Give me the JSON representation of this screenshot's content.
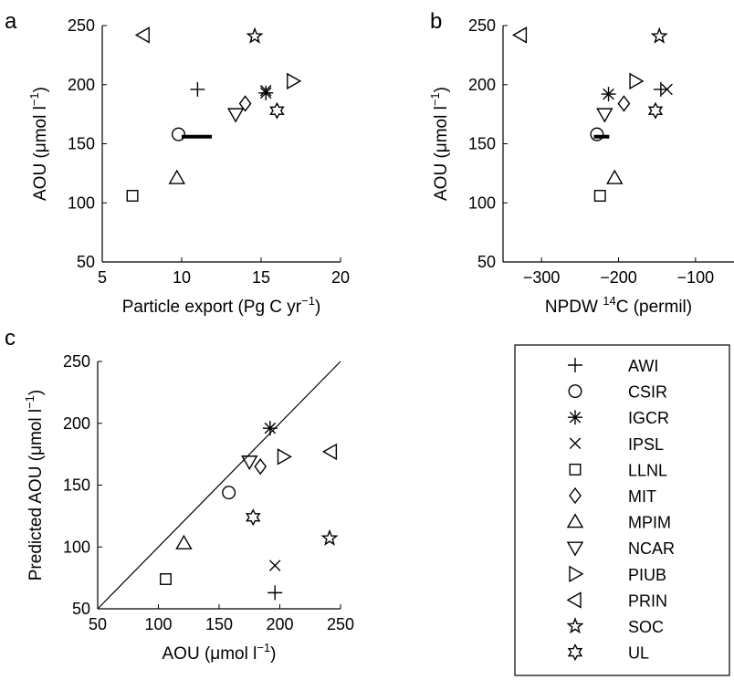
{
  "legend": {
    "entries": [
      {
        "label": "AWI",
        "marker": "plus"
      },
      {
        "label": "CSIR",
        "marker": "circle"
      },
      {
        "label": "IGCR",
        "marker": "asterisk"
      },
      {
        "label": "IPSL",
        "marker": "cross"
      },
      {
        "label": "LLNL",
        "marker": "square"
      },
      {
        "label": "MIT",
        "marker": "diamond"
      },
      {
        "label": "MPIM",
        "marker": "triangle-up"
      },
      {
        "label": "NCAR",
        "marker": "triangle-down"
      },
      {
        "label": "PIUB",
        "marker": "triangle-right"
      },
      {
        "label": "PRIN",
        "marker": "triangle-left"
      },
      {
        "label": "SOC",
        "marker": "star5"
      },
      {
        "label": "UL",
        "marker": "star6"
      }
    ]
  },
  "chart_data": [
    {
      "panel": "a",
      "type": "scatter",
      "xlabel": "Particle export (Pg C yr",
      "xlabel_sup": "−1",
      "xlabel_end": ")",
      "ylabel": "AOU (μmol l",
      "ylabel_sup": "−1",
      "ylabel_end": ")",
      "xlim": [
        5,
        20
      ],
      "ylim": [
        50,
        250
      ],
      "xticks": [
        5,
        10,
        15,
        20
      ],
      "yticks": [
        50,
        100,
        150,
        200,
        250
      ],
      "series": [
        {
          "marker": "plus",
          "x": 11.0,
          "y": 196
        },
        {
          "marker": "circle",
          "x": 9.8,
          "y": 158
        },
        {
          "marker": "asterisk",
          "x": 15.3,
          "y": 193
        },
        {
          "marker": "cross",
          "x": 15.3,
          "y": 195
        },
        {
          "marker": "square",
          "x": 6.9,
          "y": 106
        },
        {
          "marker": "diamond",
          "x": 14.0,
          "y": 184
        },
        {
          "marker": "triangle-up",
          "x": 9.7,
          "y": 121
        },
        {
          "marker": "triangle-down",
          "x": 13.4,
          "y": 175
        },
        {
          "marker": "triangle-right",
          "x": 17.0,
          "y": 203
        },
        {
          "marker": "triangle-left",
          "x": 7.6,
          "y": 242
        },
        {
          "marker": "star5",
          "x": 14.6,
          "y": 241
        },
        {
          "marker": "star6",
          "x": 16.0,
          "y": 178
        }
      ],
      "range_bar": {
        "x": [
          10.0,
          11.9
        ],
        "y": 156
      }
    },
    {
      "panel": "b",
      "type": "scatter",
      "xlabel": "NPDW ",
      "xlabel_sup": "14",
      "xlabel_end": "C (permil)",
      "ylabel": "AOU (μmol l",
      "ylabel_sup": "−1",
      "ylabel_end": ")",
      "xlim": [
        -350,
        -50
      ],
      "ylim": [
        50,
        250
      ],
      "xticks": [
        -300,
        -200,
        -100
      ],
      "xticklabels": [
        "−300",
        "−200",
        "−100"
      ],
      "yticks": [
        50,
        100,
        150,
        200,
        250
      ],
      "series": [
        {
          "marker": "plus",
          "x": -145,
          "y": 196
        },
        {
          "marker": "circle",
          "x": -228,
          "y": 158
        },
        {
          "marker": "asterisk",
          "x": -213,
          "y": 192
        },
        {
          "marker": "cross",
          "x": -137,
          "y": 196
        },
        {
          "marker": "square",
          "x": -224,
          "y": 106
        },
        {
          "marker": "diamond",
          "x": -193,
          "y": 184
        },
        {
          "marker": "triangle-up",
          "x": -205,
          "y": 121
        },
        {
          "marker": "triangle-down",
          "x": -218,
          "y": 175
        },
        {
          "marker": "triangle-right",
          "x": -178,
          "y": 203
        },
        {
          "marker": "triangle-left",
          "x": -327,
          "y": 242
        },
        {
          "marker": "star5",
          "x": -147,
          "y": 241
        },
        {
          "marker": "star6",
          "x": -152,
          "y": 178
        }
      ],
      "range_bar": {
        "x": [
          -232,
          -212
        ],
        "y": 156
      }
    },
    {
      "panel": "c",
      "type": "scatter",
      "xlabel": "AOU (μmol l",
      "xlabel_sup": "−1",
      "xlabel_end": ")",
      "ylabel": "Predicted AOU (μmol l",
      "ylabel_sup": "−1",
      "ylabel_end": ")",
      "xlim": [
        50,
        250
      ],
      "ylim": [
        50,
        250
      ],
      "xticks": [
        50,
        100,
        150,
        200,
        250
      ],
      "yticks": [
        50,
        100,
        150,
        200,
        250
      ],
      "one_to_one_line": true,
      "series": [
        {
          "marker": "plus",
          "x": 196,
          "y": 63
        },
        {
          "marker": "circle",
          "x": 158,
          "y": 144
        },
        {
          "marker": "asterisk",
          "x": 192,
          "y": 196
        },
        {
          "marker": "cross",
          "x": 196,
          "y": 85
        },
        {
          "marker": "square",
          "x": 106,
          "y": 74
        },
        {
          "marker": "diamond",
          "x": 184,
          "y": 165
        },
        {
          "marker": "triangle-up",
          "x": 121,
          "y": 103
        },
        {
          "marker": "triangle-down",
          "x": 175,
          "y": 169
        },
        {
          "marker": "triangle-right",
          "x": 203,
          "y": 173
        },
        {
          "marker": "triangle-left",
          "x": 242,
          "y": 177
        },
        {
          "marker": "star5",
          "x": 241,
          "y": 107
        },
        {
          "marker": "star6",
          "x": 178,
          "y": 124
        }
      ]
    }
  ]
}
